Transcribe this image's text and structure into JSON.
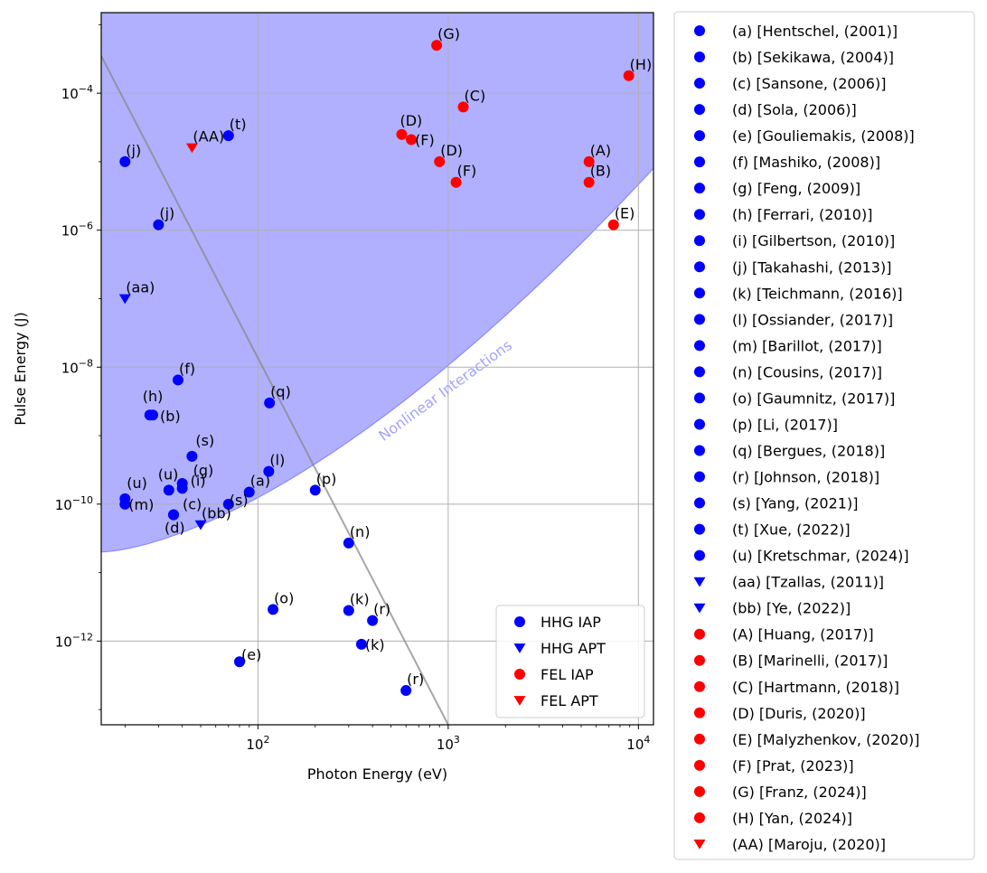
{
  "chart_data": {
    "type": "scatter",
    "xlabel": "Photon Energy (eV)",
    "ylabel": "Pulse Energy (J)",
    "xscale": "log",
    "yscale": "log",
    "xlim": [
      15,
      12000
    ],
    "ylim": [
      6e-14,
      0.0015
    ],
    "grid": true,
    "x_ticks": [
      {
        "value": 100,
        "base": "10",
        "exp": "2"
      },
      {
        "value": 1000,
        "base": "10",
        "exp": "3"
      },
      {
        "value": 10000,
        "base": "10",
        "exp": "4"
      }
    ],
    "y_ticks": [
      {
        "value": 1e-12,
        "base": "10",
        "exp": "−12"
      },
      {
        "value": 1e-10,
        "base": "10",
        "exp": "−10"
      },
      {
        "value": 1e-08,
        "base": "10",
        "exp": "−8"
      },
      {
        "value": 1e-06,
        "base": "10",
        "exp": "−6"
      },
      {
        "value": 0.0001,
        "base": "10",
        "exp": "−4"
      }
    ],
    "region": {
      "label": "Nonlinear Interactions",
      "color": "#b0b0ff",
      "edge_color": "#8a8aff"
    },
    "line": {
      "color": "#888888",
      "x": [
        15,
        1000
      ],
      "y": [
        0.00035,
        6e-14
      ]
    },
    "categories_legend": {
      "placement": "lower-right",
      "entries": [
        {
          "label": "HHG IAP",
          "marker": "circle",
          "color": "#0000ff"
        },
        {
          "label": "HHG APT",
          "marker": "triangle-down",
          "color": "#0000ff"
        },
        {
          "label": "FEL IAP",
          "marker": "circle",
          "color": "#ff0000"
        },
        {
          "label": "FEL APT",
          "marker": "triangle-down",
          "color": "#ff0000"
        }
      ]
    },
    "points": [
      {
        "label": "(a)",
        "x": 90,
        "y": 1.5e-10,
        "marker": "circle",
        "color": "#0000ff"
      },
      {
        "label": "(b)",
        "x": 28,
        "y": 2e-09,
        "marker": "circle",
        "color": "#0000ff"
      },
      {
        "label": "(c)",
        "x": 36,
        "y": 7e-11,
        "marker": "circle",
        "color": "#0000ff"
      },
      {
        "label": "(d)",
        "x": 36,
        "y": 7e-11,
        "marker": "circle",
        "color": "#0000ff"
      },
      {
        "label": "(e)",
        "x": 80,
        "y": 5e-13,
        "marker": "circle",
        "color": "#0000ff"
      },
      {
        "label": "(f)",
        "x": 38,
        "y": 6.5e-09,
        "marker": "circle",
        "color": "#0000ff"
      },
      {
        "label": "(g)",
        "x": 40,
        "y": 2e-10,
        "marker": "circle",
        "color": "#0000ff"
      },
      {
        "label": "(h)",
        "x": 27,
        "y": 2e-09,
        "marker": "circle",
        "color": "#0000ff"
      },
      {
        "label": "(i)",
        "x": 40,
        "y": 1.7e-10,
        "marker": "circle",
        "color": "#0000ff"
      },
      {
        "label": "(j)",
        "x": 20,
        "y": 1e-05,
        "marker": "circle",
        "color": "#0000ff"
      },
      {
        "label": "(j)",
        "x": 30,
        "y": 1.2e-06,
        "marker": "circle",
        "color": "#0000ff"
      },
      {
        "label": "(k)",
        "x": 300,
        "y": 2.8e-12,
        "marker": "circle",
        "color": "#0000ff"
      },
      {
        "label": "(k)",
        "x": 350,
        "y": 9e-13,
        "marker": "circle",
        "color": "#0000ff"
      },
      {
        "label": "(l)",
        "x": 114,
        "y": 3e-10,
        "marker": "circle",
        "color": "#0000ff"
      },
      {
        "label": "(m)",
        "x": 20,
        "y": 1e-10,
        "marker": "circle",
        "color": "#0000ff"
      },
      {
        "label": "(n)",
        "x": 300,
        "y": 2.7e-11,
        "marker": "circle",
        "color": "#0000ff"
      },
      {
        "label": "(o)",
        "x": 120,
        "y": 2.9e-12,
        "marker": "circle",
        "color": "#0000ff"
      },
      {
        "label": "(p)",
        "x": 200,
        "y": 1.6e-10,
        "marker": "circle",
        "color": "#0000ff"
      },
      {
        "label": "(q)",
        "x": 115,
        "y": 3e-09,
        "marker": "circle",
        "color": "#0000ff"
      },
      {
        "label": "(r)",
        "x": 400,
        "y": 2e-12,
        "marker": "circle",
        "color": "#0000ff"
      },
      {
        "label": "(r)",
        "x": 600,
        "y": 1.9e-13,
        "marker": "circle",
        "color": "#0000ff"
      },
      {
        "label": "(s)",
        "x": 45,
        "y": 5e-10,
        "marker": "circle",
        "color": "#0000ff"
      },
      {
        "label": "(s)",
        "x": 70,
        "y": 1e-10,
        "marker": "circle",
        "color": "#0000ff"
      },
      {
        "label": "(t)",
        "x": 70,
        "y": 2.4e-05,
        "marker": "circle",
        "color": "#0000ff"
      },
      {
        "label": "(u)",
        "x": 20,
        "y": 1.2e-10,
        "marker": "circle",
        "color": "#0000ff"
      },
      {
        "label": "(u)",
        "x": 34,
        "y": 1.6e-10,
        "marker": "circle",
        "color": "#0000ff"
      },
      {
        "label": "(aa)",
        "x": 20,
        "y": 1e-07,
        "marker": "triangle-down",
        "color": "#0000ff"
      },
      {
        "label": "(bb)",
        "x": 50,
        "y": 5e-11,
        "marker": "triangle-down",
        "color": "#0000ff"
      },
      {
        "label": "(A)",
        "x": 5500,
        "y": 1e-05,
        "marker": "circle",
        "color": "#ff0000"
      },
      {
        "label": "(B)",
        "x": 5500,
        "y": 5e-06,
        "marker": "circle",
        "color": "#ff0000"
      },
      {
        "label": "(C)",
        "x": 1200,
        "y": 6.3e-05,
        "marker": "circle",
        "color": "#ff0000"
      },
      {
        "label": "(D)",
        "x": 570,
        "y": 2.5e-05,
        "marker": "circle",
        "color": "#ff0000"
      },
      {
        "label": "(D)",
        "x": 900,
        "y": 1e-05,
        "marker": "circle",
        "color": "#ff0000"
      },
      {
        "label": "(E)",
        "x": 7400,
        "y": 1.2e-06,
        "marker": "circle",
        "color": "#ff0000"
      },
      {
        "label": "(F)",
        "x": 640,
        "y": 2.1e-05,
        "marker": "circle",
        "color": "#ff0000"
      },
      {
        "label": "(F)",
        "x": 1100,
        "y": 5e-06,
        "marker": "circle",
        "color": "#ff0000"
      },
      {
        "label": "(G)",
        "x": 870,
        "y": 0.0005,
        "marker": "circle",
        "color": "#ff0000"
      },
      {
        "label": "(H)",
        "x": 8900,
        "y": 0.00018,
        "marker": "circle",
        "color": "#ff0000"
      },
      {
        "label": "(AA)",
        "x": 45,
        "y": 1.6e-05,
        "marker": "triangle-down",
        "color": "#ff0000"
      }
    ],
    "reference_legend": {
      "placement": "outside-right",
      "entries": [
        {
          "label": "(a) [Hentschel, (2001)]",
          "marker": "circle",
          "color": "#0000ff"
        },
        {
          "label": "(b) [Sekikawa, (2004)]",
          "marker": "circle",
          "color": "#0000ff"
        },
        {
          "label": "(c) [Sansone, (2006)]",
          "marker": "circle",
          "color": "#0000ff"
        },
        {
          "label": "(d) [Sola, (2006)]",
          "marker": "circle",
          "color": "#0000ff"
        },
        {
          "label": "(e) [Gouliemakis, (2008)]",
          "marker": "circle",
          "color": "#0000ff"
        },
        {
          "label": "(f) [Mashiko, (2008)]",
          "marker": "circle",
          "color": "#0000ff"
        },
        {
          "label": "(g) [Feng, (2009)]",
          "marker": "circle",
          "color": "#0000ff"
        },
        {
          "label": "(h) [Ferrari, (2010)]",
          "marker": "circle",
          "color": "#0000ff"
        },
        {
          "label": "(i) [Gilbertson, (2010)]",
          "marker": "circle",
          "color": "#0000ff"
        },
        {
          "label": "(j) [Takahashi, (2013)]",
          "marker": "circle",
          "color": "#0000ff"
        },
        {
          "label": "(k) [Teichmann, (2016)]",
          "marker": "circle",
          "color": "#0000ff"
        },
        {
          "label": "(l) [Ossiander, (2017)]",
          "marker": "circle",
          "color": "#0000ff"
        },
        {
          "label": "(m) [Barillot, (2017)]",
          "marker": "circle",
          "color": "#0000ff"
        },
        {
          "label": "(n) [Cousins, (2017)]",
          "marker": "circle",
          "color": "#0000ff"
        },
        {
          "label": "(o) [Gaumnitz, (2017)]",
          "marker": "circle",
          "color": "#0000ff"
        },
        {
          "label": "(p) [Li, (2017)]",
          "marker": "circle",
          "color": "#0000ff"
        },
        {
          "label": "(q) [Bergues, (2018)]",
          "marker": "circle",
          "color": "#0000ff"
        },
        {
          "label": "(r) [Johnson, (2018)]",
          "marker": "circle",
          "color": "#0000ff"
        },
        {
          "label": "(s) [Yang, (2021)]",
          "marker": "circle",
          "color": "#0000ff"
        },
        {
          "label": "(t) [Xue, (2022)]",
          "marker": "circle",
          "color": "#0000ff"
        },
        {
          "label": "(u) [Kretschmar, (2024)]",
          "marker": "circle",
          "color": "#0000ff"
        },
        {
          "label": "(aa) [Tzallas, (2011)]",
          "marker": "triangle-down",
          "color": "#0000ff"
        },
        {
          "label": "(bb) [Ye, (2022)]",
          "marker": "triangle-down",
          "color": "#0000ff"
        },
        {
          "label": "(A) [Huang, (2017)]",
          "marker": "circle",
          "color": "#ff0000"
        },
        {
          "label": "(B) [Marinelli, (2017)]",
          "marker": "circle",
          "color": "#ff0000"
        },
        {
          "label": "(C) [Hartmann, (2018)]",
          "marker": "circle",
          "color": "#ff0000"
        },
        {
          "label": "(D) [Duris, (2020)]",
          "marker": "circle",
          "color": "#ff0000"
        },
        {
          "label": "(E) [Malyzhenkov, (2020)]",
          "marker": "circle",
          "color": "#ff0000"
        },
        {
          "label": "(F) [Prat, (2023)]",
          "marker": "circle",
          "color": "#ff0000"
        },
        {
          "label": "(G) [Franz, (2024)]",
          "marker": "circle",
          "color": "#ff0000"
        },
        {
          "label": "(H) [Yan, (2024)]",
          "marker": "circle",
          "color": "#ff0000"
        },
        {
          "label": "(AA) [Maroju, (2020)]",
          "marker": "triangle-down",
          "color": "#ff0000"
        }
      ]
    }
  }
}
